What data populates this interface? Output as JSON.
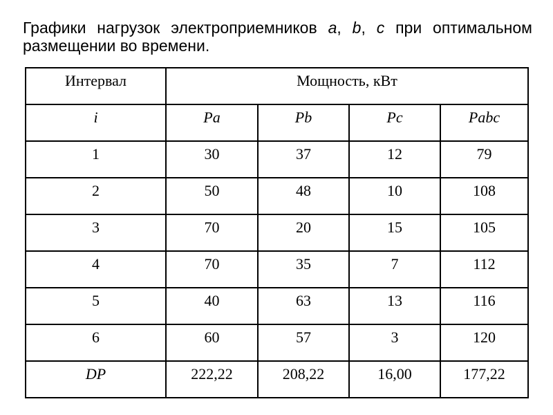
{
  "page": {
    "background_color": "#ffffff",
    "text_color": "#000000",
    "table_border_color": "#000000"
  },
  "title": {
    "full_text": "Графики нагрузок электроприемников a, b, c при оптимальном размещении во времени.",
    "line1_segments": [
      {
        "text": "Графики нагрузок электроприемников ",
        "italic": false
      },
      {
        "text": "a",
        "italic": true
      },
      {
        "text": ", ",
        "italic": false
      },
      {
        "text": "b",
        "italic": true
      },
      {
        "text": ", ",
        "italic": false
      },
      {
        "text": "c",
        "italic": true
      },
      {
        "text": " при оптимальном",
        "italic": false
      }
    ],
    "line2": "размещении во времени."
  },
  "table": {
    "header_row1": {
      "interval_label": "Интервал",
      "power_label": "Мощность, кВт"
    },
    "header_row2": {
      "cells": [
        "i",
        "Pa",
        "Pb",
        "Pc",
        "Pabc"
      ],
      "italic": true
    },
    "rows": [
      [
        "1",
        "30",
        "37",
        "12",
        "79"
      ],
      [
        "2",
        "50",
        "48",
        "10",
        "108"
      ],
      [
        "3",
        "70",
        "20",
        "15",
        "105"
      ],
      [
        "4",
        "70",
        "35",
        "7",
        "112"
      ],
      [
        "5",
        "40",
        "63",
        "13",
        "116"
      ],
      [
        "6",
        "60",
        "57",
        "3",
        "120"
      ]
    ],
    "footer_row": {
      "label": "DP",
      "values": [
        "222,22",
        "208,22",
        "16,00",
        "177,22"
      ]
    }
  }
}
